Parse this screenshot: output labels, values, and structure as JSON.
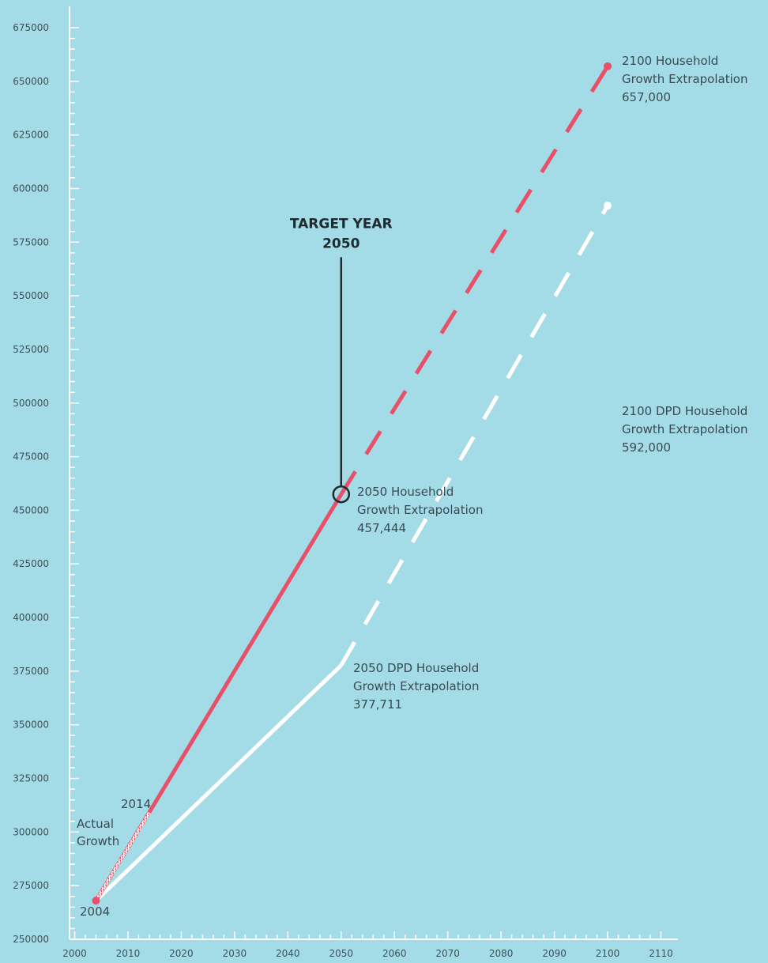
{
  "chart_data": {
    "type": "line",
    "title": "",
    "xlabel": "",
    "ylabel": "",
    "xlim": [
      2000,
      2110
    ],
    "ylim": [
      250000,
      675000
    ],
    "x_ticks": [
      2000,
      2010,
      2020,
      2030,
      2040,
      2050,
      2060,
      2070,
      2080,
      2090,
      2100,
      2110
    ],
    "y_ticks": [
      250000,
      275000,
      300000,
      325000,
      350000,
      375000,
      400000,
      425000,
      450000,
      475000,
      500000,
      525000,
      550000,
      575000,
      600000,
      625000,
      650000,
      675000
    ],
    "grid": false,
    "series": [
      {
        "name": "Actual Growth",
        "points": [
          [
            2004,
            268000
          ],
          [
            2014,
            309000
          ]
        ],
        "color": "#e8506a",
        "style": "hatched"
      },
      {
        "name": "",
        "points": [
          [
            2004,
            268000
          ],
          [
            2050,
            457444
          ]
        ],
        "color": "#e8506a",
        "style": "solid"
      },
      {
        "name": "",
        "points": [
          [
            2050,
            457444
          ],
          [
            2100,
            657000
          ]
        ],
        "color": "#e8506a",
        "style": "dashed"
      },
      {
        "name": "",
        "points": [
          [
            2004,
            268000
          ],
          [
            2050,
            377711
          ]
        ],
        "color": "#ffffff",
        "style": "solid"
      },
      {
        "name": "",
        "points": [
          [
            2050,
            377711
          ],
          [
            2100,
            592000
          ]
        ],
        "color": "#ffffff",
        "style": "dashed"
      }
    ],
    "target": {
      "label_line1": "TARGET YEAR",
      "label_line2": "2050",
      "x": 2050,
      "y": 457444,
      "line_top_value": 568000
    },
    "annotations": {
      "year_2004": "2004",
      "year_2014": "2014",
      "actual_growth_line1": "Actual",
      "actual_growth_line2": "Growth",
      "hh_2050_line1": "2050 Household",
      "hh_2050_line2": "Growth Extrapolation",
      "hh_2050_value": "457,444",
      "hh_2100_line1": "2100 Household",
      "hh_2100_line2": "Growth Extrapolation",
      "hh_2100_value": "657,000",
      "dpd_2050_line1": "2050 DPD Household",
      "dpd_2050_line2": "Growth Extrapolation",
      "dpd_2050_value": "377,711",
      "dpd_2100_line1": "2100 DPD Household",
      "dpd_2100_line2": "Growth Extrapolation",
      "dpd_2100_value": "592,000"
    },
    "colors": {
      "background": "#a3dbe6",
      "axis": "#ffffff",
      "household": "#e8506a",
      "dpd": "#ffffff",
      "target": "#1f2a2e"
    }
  }
}
